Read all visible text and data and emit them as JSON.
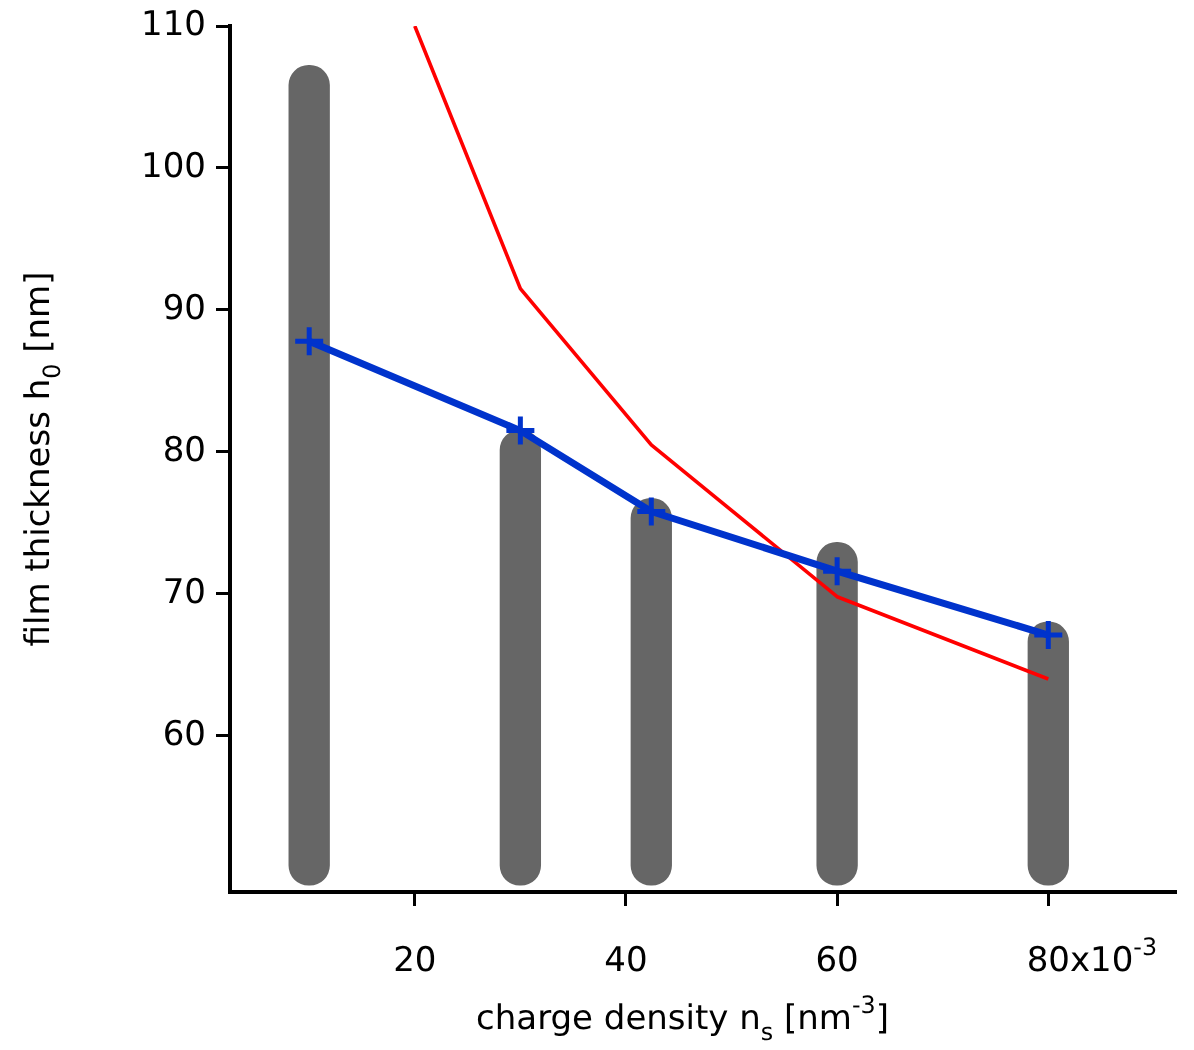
{
  "chart_data": {
    "type": "line",
    "xlabel": "charge density n$_{s}$ [nm$^{-3}$]",
    "ylabel": "film thickness h$_{0}$ [nm]",
    "xlim": [
      2.5,
      92
    ],
    "ylim": [
      49,
      110
    ],
    "xticks": [
      20,
      40,
      60,
      80
    ],
    "yticks": [
      60,
      70,
      80,
      90,
      100,
      110
    ],
    "grid": false,
    "legend": false,
    "annotations": [
      "x10$^{-3}$"
    ],
    "series": [
      {
        "type": "bar",
        "color": "#666666",
        "x": [
          10,
          30,
          42.4,
          60,
          80
        ],
        "base": [
          49.5,
          49.5,
          49.5,
          49.5,
          49.5
        ],
        "values": [
          57.7,
          32,
          27.2,
          24.1,
          18.5
        ]
      },
      {
        "marker": "cross",
        "color": "#0033cc",
        "x": [
          10,
          30,
          42.4,
          60,
          80
        ],
        "values": [
          87.8,
          81.5,
          75.8,
          71.6,
          67.1
        ]
      },
      {
        "marker": "none",
        "color": "#ff0000",
        "x": [
          20,
          30,
          42.4,
          60,
          80
        ],
        "values": [
          110,
          91.5,
          80.5,
          69.8,
          64
        ]
      }
    ]
  }
}
